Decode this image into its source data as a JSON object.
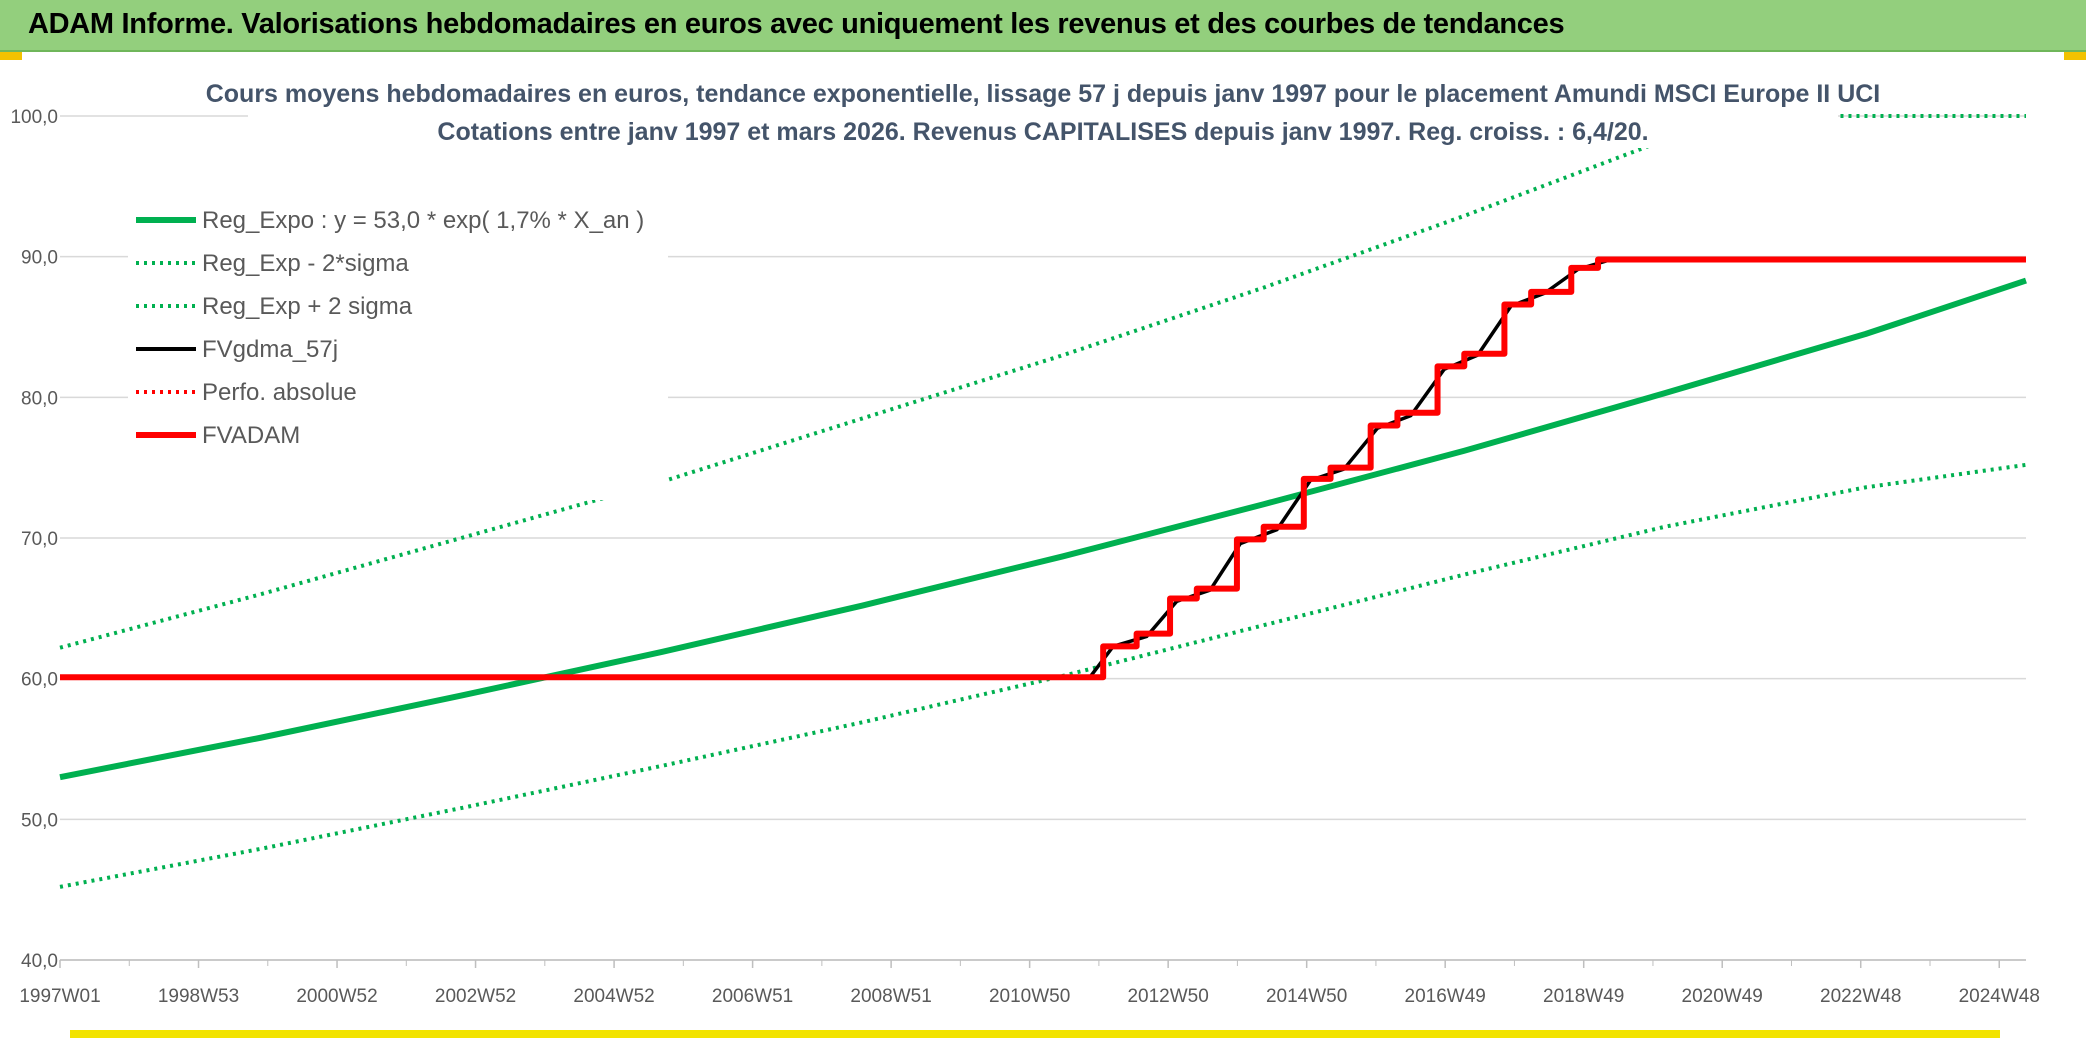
{
  "header": {
    "title": "ADAM Informe. Valorisations hebdomadaires en euros avec uniquement les revenus et des courbes de tendances"
  },
  "colors": {
    "banner": "#93cf7d",
    "regression": "#00b050",
    "fvgdma": "#000000",
    "fvadam": "#ff0000",
    "grid": "#d9d9d9"
  },
  "chart_data": {
    "type": "line",
    "title": [
      "Cours moyens hebdomadaires en euros, tendance exponentielle, lissage 57 j depuis janv 1997 pour le placement Amundi MSCI Europe II UCI",
      "Cotations entre janv 1997 et mars 2026. Revenus CAPITALISES depuis janv 1997. Reg. croiss. : 6,4/20."
    ],
    "x_categories": [
      "1997W01",
      "1998W53",
      "2000W52",
      "2002W52",
      "2004W52",
      "2006W51",
      "2008W51",
      "2010W50",
      "2012W50",
      "2014W50",
      "2016W49",
      "2018W49",
      "2020W49",
      "2022W48",
      "2024W48"
    ],
    "xlim": [
      1997.0,
      2026.4
    ],
    "ylim": [
      40,
      100
    ],
    "yticks": [
      "40,0",
      "50,0",
      "60,0",
      "70,0",
      "80,0",
      "90,0",
      "100,0"
    ],
    "ytick_values": [
      40,
      50,
      60,
      70,
      80,
      90,
      100
    ],
    "grid": true,
    "legend_position": "top-left",
    "series": [
      {
        "name": "Reg_Expo : y = 53,0 * exp( 1,7% *  X_an )",
        "style": "solid-thick",
        "color": "#00b050",
        "points": [
          [
            1997.0,
            53.0
          ],
          [
            2000.0,
            55.8
          ],
          [
            2003.0,
            58.8
          ],
          [
            2006.0,
            61.9
          ],
          [
            2009.0,
            65.2
          ],
          [
            2012.0,
            68.7
          ],
          [
            2015.0,
            72.4
          ],
          [
            2018.0,
            76.2
          ],
          [
            2021.0,
            80.3
          ],
          [
            2024.0,
            84.5
          ],
          [
            2026.4,
            88.3
          ]
        ]
      },
      {
        "name": "Reg_Exp - 2*sigma",
        "style": "dotted",
        "color": "#00b050",
        "points": [
          [
            1997.0,
            45.2
          ],
          [
            2000.0,
            47.9
          ],
          [
            2003.0,
            50.8
          ],
          [
            2006.0,
            53.8
          ],
          [
            2009.0,
            56.9
          ],
          [
            2012.0,
            60.2
          ],
          [
            2015.0,
            63.8
          ],
          [
            2018.0,
            67.4
          ],
          [
            2021.0,
            70.8
          ],
          [
            2024.0,
            73.6
          ],
          [
            2026.4,
            75.2
          ]
        ]
      },
      {
        "name": "Reg_Exp + 2 sigma",
        "style": "dotted",
        "color": "#00b050",
        "points": [
          [
            1997.0,
            62.2
          ],
          [
            2000.0,
            66.0
          ],
          [
            2003.0,
            70.0
          ],
          [
            2006.0,
            74.0
          ],
          [
            2009.0,
            78.5
          ],
          [
            2012.0,
            83.0
          ],
          [
            2015.0,
            87.8
          ],
          [
            2018.0,
            92.9
          ],
          [
            2021.0,
            98.3
          ],
          [
            2022.0,
            100.0
          ],
          [
            2026.4,
            100.0
          ]
        ]
      },
      {
        "name": "FVgdma_57j",
        "style": "solid",
        "color": "#000000",
        "points": [
          [
            1997.0,
            60.1
          ],
          [
            2012.4,
            60.1
          ],
          [
            2012.75,
            62.3
          ],
          [
            2013.25,
            63.0
          ],
          [
            2013.7,
            65.5
          ],
          [
            2014.2,
            66.3
          ],
          [
            2014.65,
            69.6
          ],
          [
            2015.2,
            70.6
          ],
          [
            2015.7,
            74.1
          ],
          [
            2016.2,
            74.9
          ],
          [
            2016.7,
            77.8
          ],
          [
            2017.2,
            78.7
          ],
          [
            2017.7,
            82.0
          ],
          [
            2018.2,
            83.0
          ],
          [
            2018.7,
            86.5
          ],
          [
            2019.2,
            87.4
          ],
          [
            2019.7,
            89.1
          ],
          [
            2020.2,
            89.8
          ],
          [
            2026.4,
            89.8
          ]
        ]
      },
      {
        "name": "Perfo. absolue",
        "style": "dotted",
        "color": "#ff0000",
        "points": []
      },
      {
        "name": "FVADAM",
        "style": "solid-thick",
        "color": "#ff0000",
        "steps": [
          [
            1997.0,
            60.1
          ],
          [
            2012.6,
            62.3
          ],
          [
            2013.1,
            63.2
          ],
          [
            2013.6,
            65.7
          ],
          [
            2014.0,
            66.4
          ],
          [
            2014.6,
            69.9
          ],
          [
            2015.0,
            70.8
          ],
          [
            2015.6,
            74.2
          ],
          [
            2016.0,
            75.0
          ],
          [
            2016.6,
            78.0
          ],
          [
            2017.0,
            78.9
          ],
          [
            2017.6,
            82.2
          ],
          [
            2018.0,
            83.1
          ],
          [
            2018.6,
            86.6
          ],
          [
            2019.0,
            87.5
          ],
          [
            2019.6,
            89.2
          ],
          [
            2020.0,
            89.8
          ],
          [
            2026.4,
            89.8
          ]
        ]
      }
    ]
  }
}
